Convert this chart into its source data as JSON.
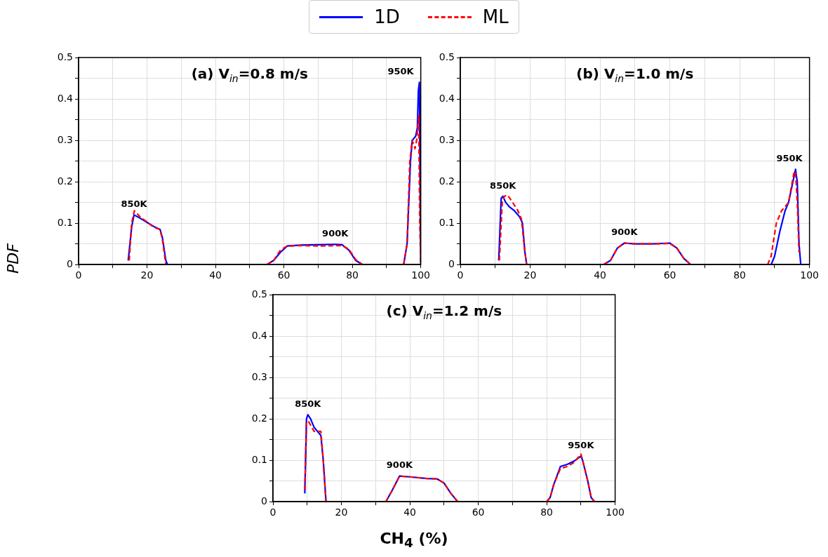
{
  "chart_data": [
    {
      "type": "line",
      "title": "(a) V$_{in}$=0.8 m/s",
      "ylabel": "PDF",
      "legend": "top",
      "grid": true,
      "marker": "none",
      "xlim": [
        0,
        100
      ],
      "ylim": [
        0,
        0.5
      ],
      "xticks": [
        0,
        {
          "value": 10,
          "label": null
        },
        20,
        {
          "value": 30,
          "label": null
        },
        40,
        {
          "value": 50,
          "label": null
        },
        60,
        {
          "value": 70,
          "label": null
        },
        80,
        {
          "value": 90,
          "label": null
        },
        100
      ],
      "yticks": [
        0.0,
        {
          "value": 0.05,
          "label": null
        },
        0.1,
        {
          "value": 0.15,
          "label": null
        },
        0.2,
        {
          "value": 0.25,
          "label": null
        },
        0.3,
        {
          "value": 0.35,
          "label": null
        },
        0.4,
        {
          "value": 0.45,
          "label": null
        },
        0.5
      ],
      "annotations": [
        "850K",
        "900K",
        "950K"
      ],
      "series": [
        {
          "name": "1D",
          "color": "#0000ff",
          "line_style": "solid",
          "x": [
            14.5,
            15.5,
            16.2,
            18,
            20,
            22,
            23.8,
            24.5,
            25.5,
            26,
            40,
            55,
            57,
            59,
            61,
            65,
            70,
            75,
            77,
            79,
            81,
            83,
            90,
            95,
            96,
            97,
            97.5,
            98.5,
            99,
            99.3,
            99.6,
            99.8,
            100
          ],
          "values": [
            0.01,
            0.09,
            0.12,
            0.112,
            0.102,
            0.092,
            0.085,
            0.065,
            0.01,
            0,
            null,
            0,
            0.01,
            0.03,
            0.045,
            0.047,
            0.048,
            0.049,
            0.048,
            0.035,
            0.01,
            0,
            null,
            0,
            0.05,
            0.25,
            0.3,
            0.31,
            0.33,
            0.42,
            0.44,
            0.2,
            0
          ]
        },
        {
          "name": "ML",
          "color": "#ff0000",
          "line_style": "dashed",
          "x": [
            14.8,
            15.5,
            16.3,
            18,
            20,
            22,
            23.8,
            24.5,
            25.5,
            40,
            55,
            57,
            59,
            61,
            65,
            70,
            75,
            77,
            79,
            81,
            83,
            90,
            95,
            96,
            96.8,
            97.5,
            98.3,
            98.8,
            99.4,
            99.7,
            100
          ],
          "values": [
            0.01,
            0.1,
            0.13,
            0.115,
            0.103,
            0.09,
            0.085,
            0.06,
            0,
            null,
            0,
            0.01,
            0.035,
            0.045,
            0.046,
            0.045,
            0.046,
            0.046,
            0.037,
            0.012,
            0,
            null,
            0,
            0.05,
            0.25,
            0.3,
            0.28,
            0.3,
            0.36,
            0.1,
            0
          ]
        }
      ]
    },
    {
      "type": "line",
      "title": "(b) V$_{in}$=1.0 m/s",
      "grid": true,
      "marker": "none",
      "xlim": [
        0,
        100
      ],
      "ylim": [
        0,
        0.5
      ],
      "xticks": [
        0,
        {
          "value": 10,
          "label": null
        },
        20,
        {
          "value": 30,
          "label": null
        },
        40,
        {
          "value": 50,
          "label": null
        },
        60,
        {
          "value": 70,
          "label": null
        },
        80,
        {
          "value": 90,
          "label": null
        },
        100
      ],
      "yticks": [
        0.0,
        {
          "value": 0.05,
          "label": null
        },
        0.1,
        {
          "value": 0.15,
          "label": null
        },
        0.2,
        {
          "value": 0.25,
          "label": null
        },
        0.3,
        {
          "value": 0.35,
          "label": null
        },
        0.4,
        {
          "value": 0.45,
          "label": null
        },
        0.5
      ],
      "annotations": [
        "850K",
        "900K",
        "950K"
      ],
      "series": [
        {
          "color": "#0000ff",
          "line_style": "solid",
          "x": [
            11,
            11.7,
            12.2,
            13,
            14,
            15.5,
            17,
            17.8,
            18.5,
            19,
            30,
            41,
            43,
            45,
            47,
            50,
            55,
            60,
            62,
            64,
            66,
            80,
            89,
            90,
            91.5,
            93,
            94,
            95,
            96,
            96.5,
            97,
            97.5
          ],
          "values": [
            0.01,
            0.16,
            0.165,
            0.15,
            0.14,
            0.13,
            0.115,
            0.1,
            0.03,
            0,
            null,
            0,
            0.01,
            0.04,
            0.052,
            0.05,
            0.05,
            0.052,
            0.04,
            0.015,
            0,
            null,
            0,
            0.02,
            0.08,
            0.13,
            0.15,
            0.19,
            0.23,
            0.2,
            0.05,
            0
          ]
        },
        {
          "color": "#ff0000",
          "line_style": "dashed",
          "x": [
            11.2,
            12,
            12.6,
            13.5,
            15,
            16.5,
            17.5,
            18.5,
            19,
            30,
            41,
            43,
            45,
            47,
            50,
            55,
            60,
            62,
            64,
            66,
            80,
            88,
            89,
            90.5,
            92,
            94,
            95.5,
            96,
            96.5,
            97
          ],
          "values": [
            0.01,
            0.15,
            0.165,
            0.168,
            0.15,
            0.13,
            0.11,
            0.03,
            0,
            null,
            0,
            0.01,
            0.04,
            0.052,
            0.05,
            0.05,
            0.051,
            0.04,
            0.015,
            0,
            null,
            0,
            0.02,
            0.1,
            0.13,
            0.15,
            0.22,
            0.225,
            0.15,
            0.03
          ]
        }
      ]
    },
    {
      "type": "line",
      "title": "(c) V$_{in}$=1.2 m/s",
      "xlabel": "CH$_{4}$ (%)",
      "grid": true,
      "marker": "none",
      "xlim": [
        0,
        100
      ],
      "ylim": [
        0,
        0.5
      ],
      "xticks": [
        0,
        {
          "value": 10,
          "label": null
        },
        20,
        {
          "value": 30,
          "label": null
        },
        40,
        {
          "value": 50,
          "label": null
        },
        60,
        {
          "value": 70,
          "label": null
        },
        80,
        {
          "value": 90,
          "label": null
        },
        100
      ],
      "yticks": [
        0.0,
        {
          "value": 0.05,
          "label": null
        },
        0.1,
        {
          "value": 0.15,
          "label": null
        },
        0.2,
        {
          "value": 0.25,
          "label": null
        },
        0.3,
        {
          "value": 0.35,
          "label": null
        },
        0.4,
        {
          "value": 0.45,
          "label": null
        },
        0.5
      ],
      "annotations": [
        "850K",
        "900K",
        "950K"
      ],
      "series": [
        {
          "color": "#0000ff",
          "line_style": "solid",
          "x": [
            9.3,
            9.8,
            10.2,
            11,
            12,
            13,
            14,
            14.7,
            15.5,
            25,
            33,
            35,
            37,
            40,
            45,
            48,
            50,
            52,
            54,
            70,
            80,
            81,
            82,
            84,
            86,
            88,
            90,
            90.5,
            92,
            93,
            94
          ],
          "values": [
            0.02,
            0.2,
            0.21,
            0.2,
            0.18,
            0.17,
            0.16,
            0.1,
            0,
            null,
            0,
            0.03,
            0.062,
            0.06,
            0.056,
            0.055,
            0.045,
            0.02,
            0,
            null,
            0,
            0.01,
            0.04,
            0.085,
            0.09,
            0.098,
            0.11,
            0.1,
            0.05,
            0.01,
            0
          ]
        },
        {
          "color": "#ff0000",
          "line_style": "dashed",
          "x": [
            9.3,
            9.8,
            10.3,
            11,
            12,
            13,
            14,
            14.7,
            15.5,
            25,
            33,
            35,
            37,
            40,
            45,
            48,
            50,
            52,
            54,
            70,
            80,
            81,
            82,
            84,
            86,
            88,
            90,
            90.5,
            92,
            93,
            94
          ],
          "values": [
            0.03,
            0.19,
            0.195,
            0.185,
            0.17,
            0.17,
            0.17,
            0.1,
            0,
            null,
            0,
            0.03,
            0.062,
            0.06,
            0.056,
            0.055,
            0.045,
            0.02,
            0,
            null,
            0,
            0.01,
            0.04,
            0.08,
            0.085,
            0.095,
            0.115,
            0.1,
            0.05,
            0.01,
            0
          ]
        }
      ]
    }
  ]
}
